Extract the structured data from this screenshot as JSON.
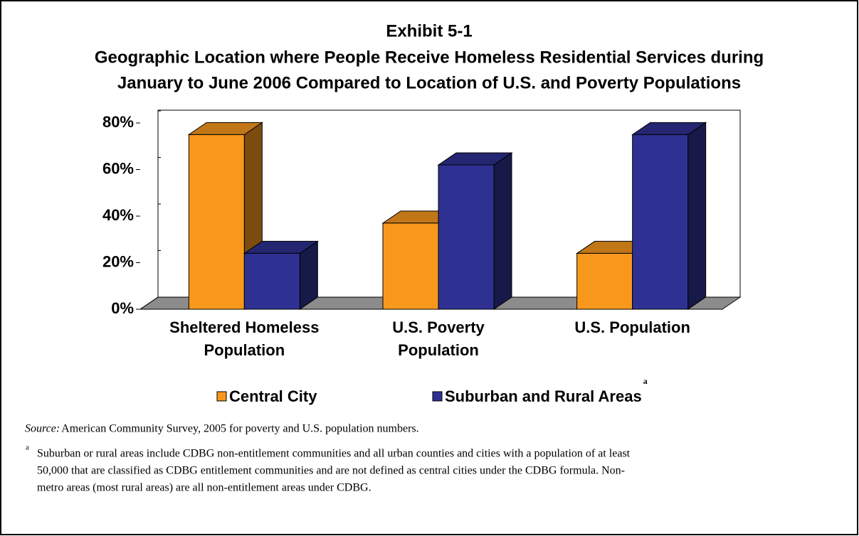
{
  "chart_data": {
    "type": "bar3d",
    "title_lines": [
      "Exhibit 5-1",
      "Geographic Location where People Receive Homeless Residential Services during",
      "January to June 2006 Compared to Location of U.S. and Poverty Populations"
    ],
    "categories": [
      [
        "Sheltered Homeless",
        "Population"
      ],
      [
        "U.S. Poverty",
        "Population"
      ],
      [
        "U.S. Population"
      ]
    ],
    "series": [
      {
        "name": "Central City",
        "color": "#f7981d",
        "values": [
          75,
          37,
          24
        ]
      },
      {
        "name": "Suburban and Rural Areas",
        "color": "#2e3192",
        "values": [
          24,
          62,
          75
        ]
      }
    ],
    "legend_footnote_marker": "a",
    "ylim": [
      0,
      80
    ],
    "yticks": [
      {
        "value": 0,
        "label": "0%"
      },
      {
        "value": 20,
        "label": "20%"
      },
      {
        "value": 40,
        "label": "40%"
      },
      {
        "value": 60,
        "label": "60%"
      },
      {
        "value": 80,
        "label": "80%"
      }
    ],
    "source_label": "Source:",
    "source_text": "American Community Survey, 2005 for poverty and U.S. population numbers.",
    "note_marker": "a",
    "note_lines": [
      "Suburban or rural areas include CDBG non-entitlement communities and all urban counties and cities with a population of at least",
      "50,000 that are classified as CDBG entitlement communities and are not defined as central cities under the CDBG formula. Non-",
      "metro areas (most rural areas) are all non-entitlement areas under CDBG."
    ]
  }
}
